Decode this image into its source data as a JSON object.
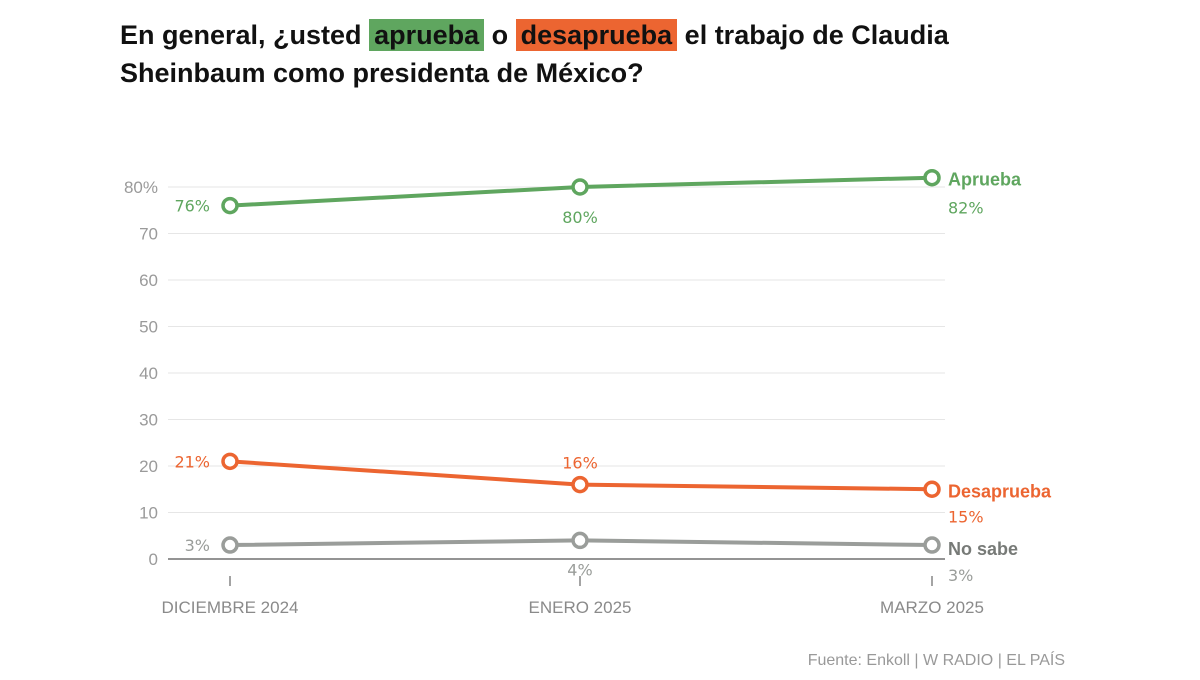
{
  "title": {
    "part1": "En general, ¿usted ",
    "approve_word": "aprueba",
    "part2": " o ",
    "disapprove_word": "desaprueba",
    "part3": " el trabajo de Claudia Sheinbaum como presidenta de México?"
  },
  "colors": {
    "aprueba": "#5fa65f",
    "desaprueba": "#ec6531",
    "no_sabe": "#9a9d9a",
    "grid": "#e6e6e6",
    "axis": "#555555"
  },
  "chart_data": {
    "type": "line",
    "title": "En general, ¿usted aprueba o desaprueba el trabajo de Claudia Sheinbaum como presidenta de México?",
    "categories": [
      "DICIEMBRE 2024",
      "ENERO 2025",
      "MARZO 2025"
    ],
    "y_ticks": [
      "0",
      "10",
      "20",
      "30",
      "40",
      "50",
      "60",
      "70",
      "80%"
    ],
    "y_tick_values": [
      0,
      10,
      20,
      30,
      40,
      50,
      60,
      70,
      80
    ],
    "ylim": [
      0,
      80
    ],
    "grid": true,
    "xlabel": "",
    "ylabel": "",
    "series": [
      {
        "name": "Aprueba",
        "key": "aprueba",
        "values": [
          76,
          80,
          82
        ],
        "labels": [
          "76%",
          "80%",
          "82%"
        ]
      },
      {
        "name": "Desaprueba",
        "key": "desaprueba",
        "values": [
          21,
          16,
          15
        ],
        "labels": [
          "21%",
          "16%",
          "15%"
        ]
      },
      {
        "name": "No sabe",
        "key": "no_sabe",
        "values": [
          3,
          4,
          3
        ],
        "labels": [
          "3%",
          "4%",
          "3%"
        ]
      }
    ]
  },
  "source": "Fuente: Enkoll | W RADIO | EL PAÍS"
}
